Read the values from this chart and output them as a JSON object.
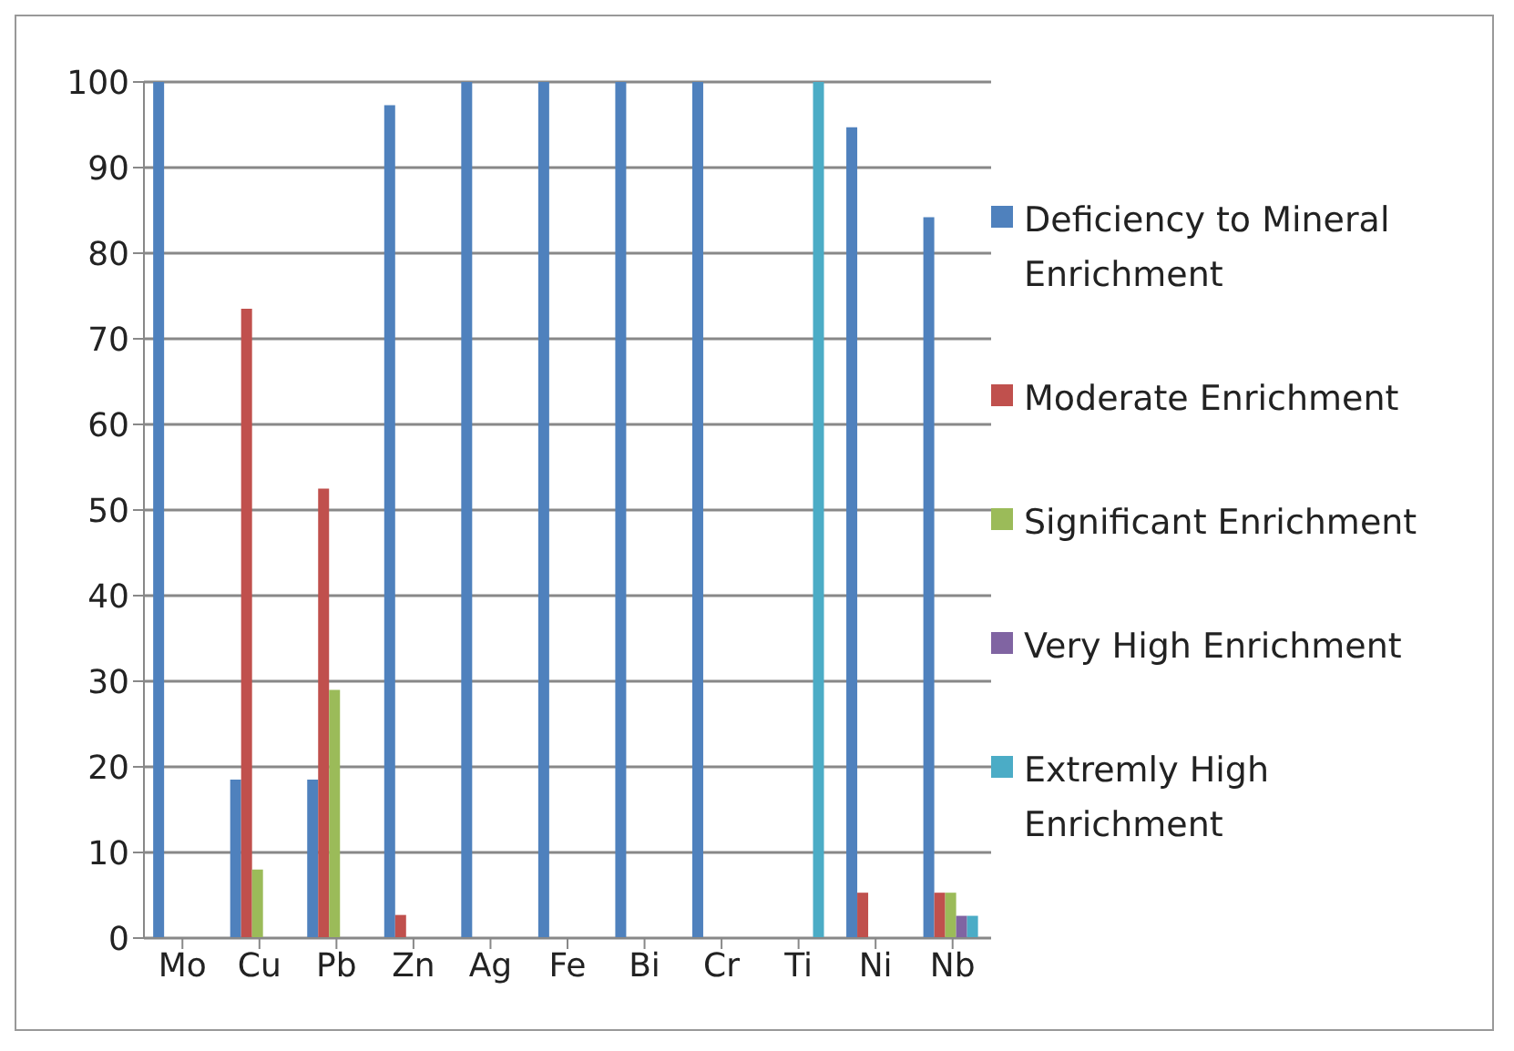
{
  "chart_data": {
    "type": "bar",
    "categories": [
      "Mo",
      "Cu",
      "Pb",
      "Zn",
      "Ag",
      "Fe",
      "Bi",
      "Cr",
      "Ti",
      "Ni",
      "Nb"
    ],
    "series": [
      {
        "name": "Deficiency to Mineral Enrichment",
        "color": "#4f81bd",
        "values": [
          100,
          18.5,
          18.5,
          97.3,
          100,
          100,
          100,
          100,
          0,
          94.7,
          84.2
        ]
      },
      {
        "name": "Moderate Enrichment",
        "color": "#c0504d",
        "values": [
          0,
          73.5,
          52.5,
          2.7,
          0,
          0,
          0,
          0,
          0,
          5.3,
          5.3
        ]
      },
      {
        "name": "Significant Enrichment",
        "color": "#9bbb59",
        "values": [
          0,
          8,
          29,
          0,
          0,
          0,
          0,
          0,
          0,
          0,
          5.3
        ]
      },
      {
        "name": "Very High Enrichment",
        "color": "#8064a2",
        "values": [
          0,
          0,
          0,
          0,
          0,
          0,
          0,
          0,
          0,
          0,
          2.6
        ]
      },
      {
        "name": "Extremly High Enrichment",
        "color": "#4bacc6",
        "values": [
          0,
          0,
          0,
          0,
          0,
          0,
          0,
          0,
          100,
          0,
          2.6
        ]
      }
    ],
    "ylim": [
      0,
      100
    ],
    "yticks": [
      0,
      10,
      20,
      30,
      40,
      50,
      60,
      70,
      80,
      90,
      100
    ],
    "grid": "y",
    "legend": "right"
  }
}
